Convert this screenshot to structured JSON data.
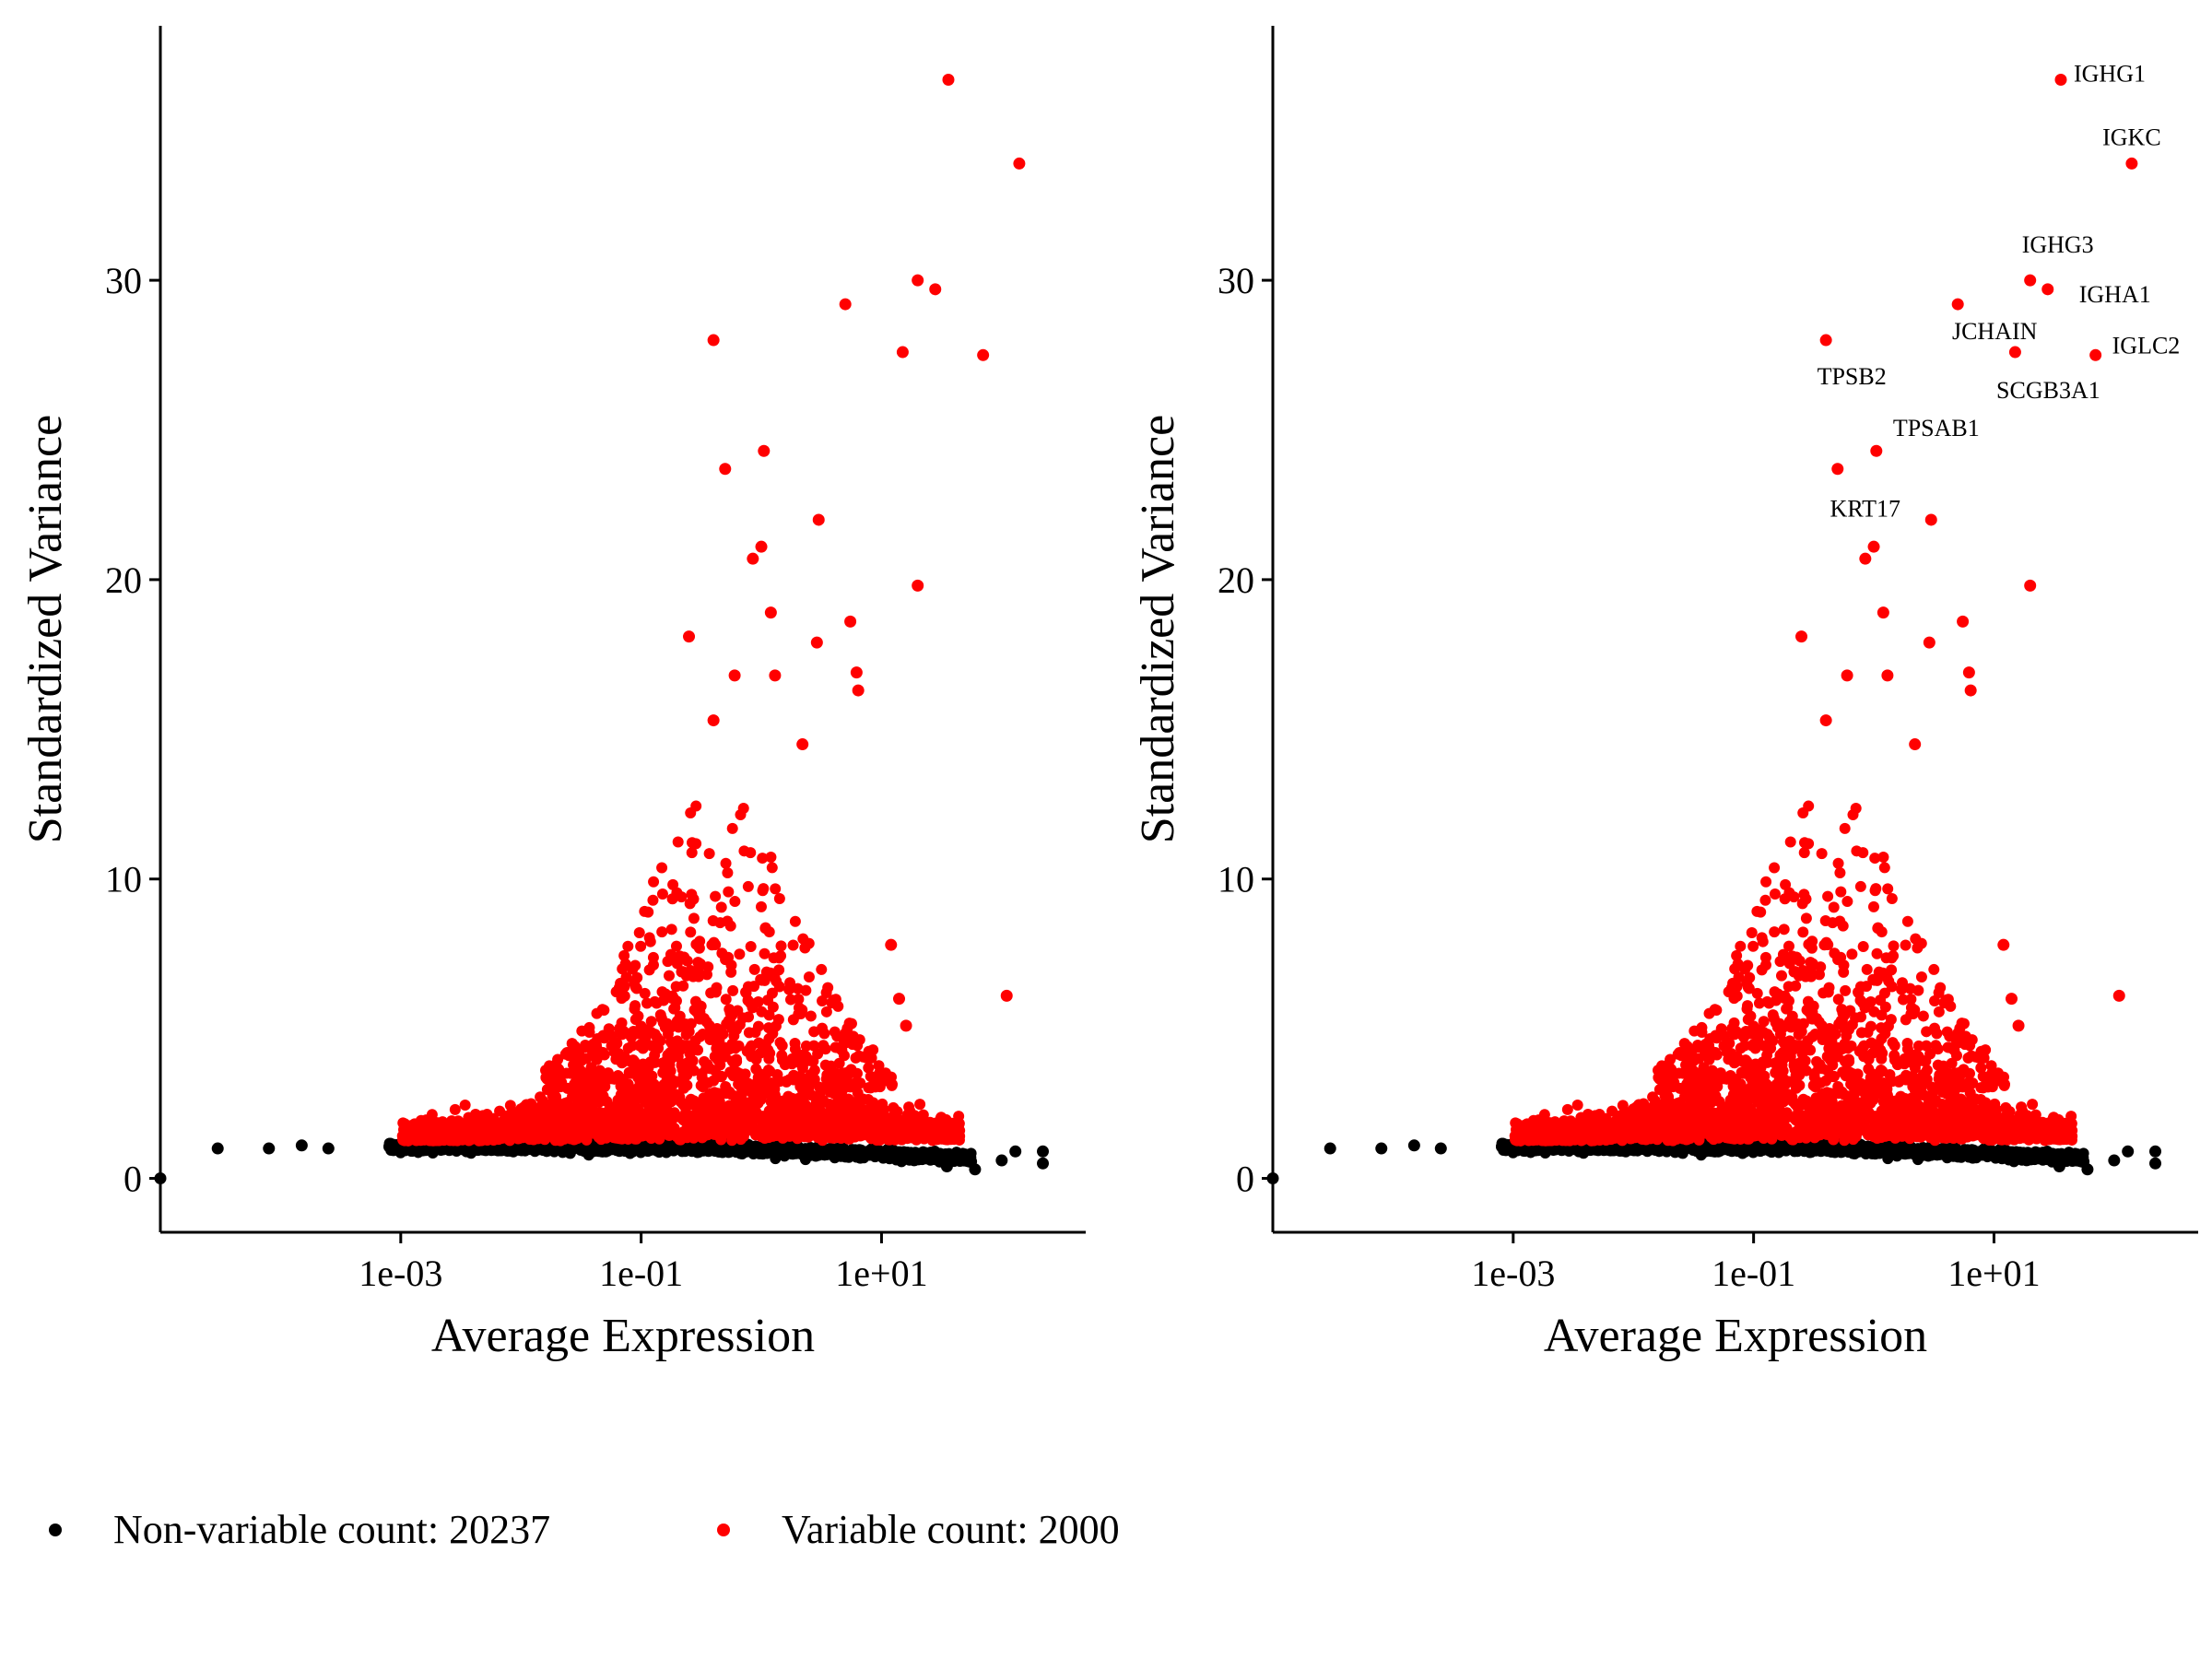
{
  "chart_data": [
    {
      "type": "scatter",
      "xscale": "log10",
      "xlabel": "Average Expression",
      "ylabel": "Standardized Variance",
      "xlim": [
        1e-05,
        500
      ],
      "ylim": [
        -1.8,
        38.5
      ],
      "xticks": [
        {
          "value": 0.001,
          "label": "1e-03"
        },
        {
          "value": 0.1,
          "label": "1e-01"
        },
        {
          "value": 10,
          "label": "1e+01"
        }
      ],
      "yticks": [
        {
          "value": 0,
          "label": "0"
        },
        {
          "value": 10,
          "label": "10"
        },
        {
          "value": 20,
          "label": "20"
        },
        {
          "value": 30,
          "label": "30"
        }
      ],
      "grid": false,
      "series": [
        {
          "name": "Non-variable count: 20237",
          "color": "#000000",
          "points": [
            [
              1e-05,
              0
            ],
            [
              3e-05,
              1.0
            ],
            [
              8e-05,
              1.0
            ],
            [
              0.00015,
              1.1
            ],
            [
              0.00025,
              1.0
            ],
            [
              35,
              0.4
            ],
            [
              60,
              0.3
            ],
            [
              100,
              0.6
            ],
            [
              130,
              0.9
            ],
            [
              220,
              0.9
            ],
            [
              220,
              0.5
            ]
          ]
        },
        {
          "name": "Variable count: 2000",
          "color": "#ff0000",
          "points": [
            [
              36,
              36.7
            ],
            [
              140,
              33.9
            ],
            [
              20,
              30.0
            ],
            [
              28,
              29.7
            ],
            [
              5,
              29.2
            ],
            [
              15,
              27.6
            ],
            [
              0.4,
              28.0
            ],
            [
              70,
              27.5
            ],
            [
              1.05,
              24.3
            ],
            [
              0.5,
              23.7
            ],
            [
              3,
              22.0
            ],
            [
              1.0,
              21.1
            ],
            [
              0.85,
              20.7
            ],
            [
              20,
              19.8
            ],
            [
              1.2,
              18.9
            ],
            [
              5.5,
              18.6
            ],
            [
              2.9,
              17.9
            ],
            [
              6.2,
              16.9
            ],
            [
              6.4,
              16.3
            ],
            [
              0.25,
              18.1
            ],
            [
              1.3,
              16.8
            ],
            [
              0.6,
              16.8
            ],
            [
              0.4,
              15.3
            ],
            [
              2.2,
              14.5
            ],
            [
              12,
              7.8
            ],
            [
              14,
              6.0
            ],
            [
              110,
              6.1
            ],
            [
              35,
              1.8
            ],
            [
              16,
              5.1
            ]
          ],
          "annotations": [
            {
              "label": "IGHG1",
              "x": 36,
              "y": 36.7
            },
            {
              "label": "IGKC",
              "x": 140,
              "y": 33.9
            },
            {
              "label": "IGHG3",
              "x": 20,
              "y": 30.0
            },
            {
              "label": "IGHA1",
              "x": 28,
              "y": 29.7
            },
            {
              "label": "JCHAIN",
              "x": 5,
              "y": 29.2
            },
            {
              "label": "IGLC2",
              "x": 70,
              "y": 27.5
            },
            {
              "label": "TPSB2",
              "x": 0.4,
              "y": 28.0
            },
            {
              "label": "SCGB3A1",
              "x": 15,
              "y": 27.6
            },
            {
              "label": "TPSAB1",
              "x": 1.05,
              "y": 24.3
            },
            {
              "label": "KRT17",
              "x": 0.5,
              "y": 23.7
            }
          ]
        }
      ]
    }
  ],
  "panels": [
    {
      "id": "left",
      "show_labels": false
    },
    {
      "id": "right",
      "show_labels": true
    }
  ],
  "legend": {
    "position": "bottom-left",
    "items": [
      {
        "label": "Non-variable count: 20237",
        "color": "#000000"
      },
      {
        "label": "Variable count: 2000",
        "color": "#ff0000"
      }
    ]
  }
}
